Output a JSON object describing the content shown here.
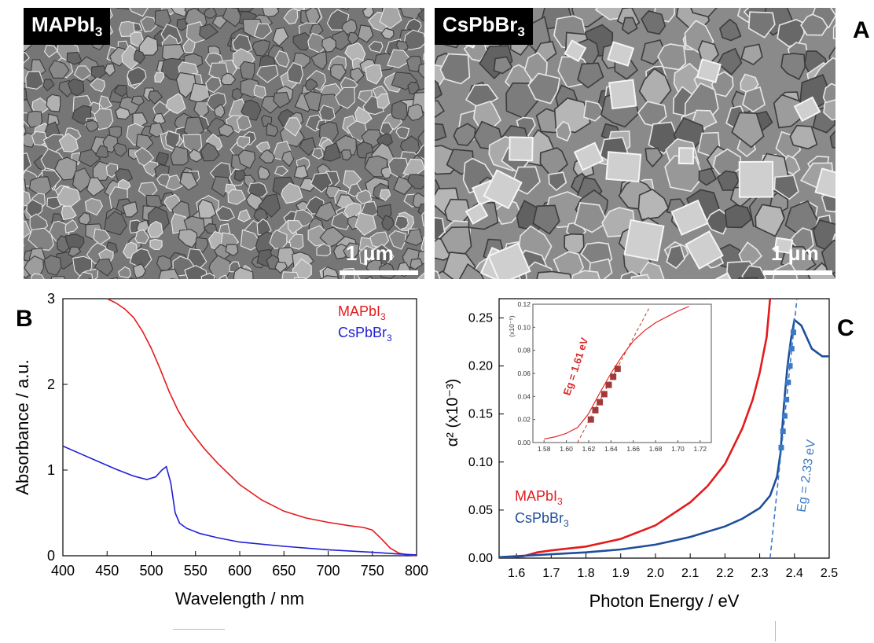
{
  "panel_a": {
    "letter": "A",
    "left": {
      "label_main": "MAPbI",
      "label_sub": "3",
      "scale_label": "1 μm"
    },
    "right": {
      "label_main": "CsPbBr",
      "label_sub": "3",
      "scale_label": "1 μm"
    }
  },
  "panel_b": {
    "letter": "B",
    "legend": [
      {
        "main": "MAPbI",
        "sub": "3",
        "color": "#e41a1c"
      },
      {
        "main": "CsPbBr",
        "sub": "3",
        "color": "#1f1fd6"
      }
    ]
  },
  "panel_c": {
    "letter": "C",
    "legend": [
      {
        "main": "MAPbI",
        "sub": "3",
        "color": "#e41a1c"
      },
      {
        "main": "CsPbBr",
        "sub": "3",
        "color": "#1f4e9a"
      }
    ],
    "eg_csbr": "Eg = 2.33 eV",
    "eg_mapi": "Eg = 1.61 eV",
    "inset_multiplier": "(x10⁻⁵)"
  },
  "chart_data": [
    {
      "type": "line",
      "title": "",
      "xlabel": "Wavelength / nm",
      "ylabel": "Absorbance / a.u.",
      "xlim": [
        400,
        800
      ],
      "ylim": [
        0,
        3
      ],
      "xticks": [
        400,
        450,
        500,
        550,
        600,
        650,
        700,
        750,
        800
      ],
      "yticks": [
        0,
        1,
        2,
        3
      ],
      "series": [
        {
          "name": "MAPbI3",
          "color": "#e41a1c",
          "x": [
            450,
            460,
            470,
            480,
            490,
            500,
            510,
            520,
            530,
            540,
            550,
            560,
            575,
            600,
            625,
            650,
            675,
            700,
            725,
            740,
            750,
            760,
            770,
            780,
            790,
            800
          ],
          "y": [
            3.0,
            2.95,
            2.88,
            2.78,
            2.62,
            2.42,
            2.18,
            1.92,
            1.7,
            1.52,
            1.38,
            1.25,
            1.08,
            0.83,
            0.65,
            0.52,
            0.44,
            0.39,
            0.35,
            0.33,
            0.3,
            0.2,
            0.09,
            0.03,
            0.01,
            0.0
          ]
        },
        {
          "name": "CsPbBr3",
          "color": "#1f1fd6",
          "x": [
            400,
            420,
            440,
            460,
            480,
            495,
            505,
            512,
            517,
            522,
            527,
            532,
            540,
            555,
            575,
            600,
            650,
            700,
            750,
            780,
            800
          ],
          "y": [
            1.28,
            1.19,
            1.1,
            1.01,
            0.93,
            0.89,
            0.92,
            1.0,
            1.04,
            0.85,
            0.5,
            0.38,
            0.32,
            0.26,
            0.21,
            0.16,
            0.11,
            0.07,
            0.04,
            0.02,
            0.01
          ]
        }
      ]
    },
    {
      "type": "line",
      "title": "",
      "xlabel": "Photon Energy / eV",
      "ylabel": "α² (x10⁻³)",
      "xlim": [
        1.55,
        2.5
      ],
      "ylim": [
        0,
        0.27
      ],
      "xticks": [
        1.6,
        1.7,
        1.8,
        1.9,
        2.0,
        2.1,
        2.2,
        2.3,
        2.4,
        2.5
      ],
      "yticks": [
        0.0,
        0.05,
        0.1,
        0.15,
        0.2,
        0.25
      ],
      "series": [
        {
          "name": "MAPbI3",
          "color": "#e41a1c",
          "x": [
            1.55,
            1.62,
            1.66,
            1.7,
            1.8,
            1.9,
            2.0,
            2.1,
            2.15,
            2.2,
            2.25,
            2.28,
            2.3,
            2.32,
            2.33
          ],
          "y": [
            0.0,
            0.002,
            0.006,
            0.008,
            0.012,
            0.02,
            0.034,
            0.058,
            0.075,
            0.098,
            0.135,
            0.165,
            0.193,
            0.23,
            0.27
          ]
        },
        {
          "name": "CsPbBr3",
          "color": "#1f4e9a",
          "x": [
            1.55,
            1.7,
            1.8,
            1.9,
            2.0,
            2.1,
            2.2,
            2.25,
            2.3,
            2.33,
            2.35,
            2.36,
            2.37,
            2.38,
            2.39,
            2.4,
            2.42,
            2.45,
            2.48,
            2.5
          ],
          "y": [
            0.001,
            0.004,
            0.006,
            0.009,
            0.014,
            0.022,
            0.033,
            0.041,
            0.052,
            0.065,
            0.085,
            0.11,
            0.16,
            0.2,
            0.228,
            0.248,
            0.242,
            0.218,
            0.21,
            0.21
          ]
        }
      ],
      "fit_line": {
        "name": "CsPbBr3 fit",
        "x": [
          2.33,
          2.41
        ],
        "y": [
          0.0,
          0.28
        ]
      },
      "fit_points": {
        "x": [
          2.362,
          2.367,
          2.372,
          2.377,
          2.382,
          2.387,
          2.392,
          2.397
        ],
        "y": [
          0.115,
          0.132,
          0.148,
          0.165,
          0.183,
          0.2,
          0.218,
          0.235
        ]
      },
      "annotations": [
        "Eg = 2.33 eV"
      ]
    },
    {
      "type": "line",
      "title": "inset",
      "xlim": [
        1.57,
        1.73
      ],
      "ylim": [
        0,
        0.12
      ],
      "xticks": [
        1.58,
        1.6,
        1.62,
        1.64,
        1.66,
        1.68,
        1.7,
        1.72
      ],
      "yticks": [
        0.0,
        0.02,
        0.04,
        0.06,
        0.08,
        0.1,
        0.12
      ],
      "series": [
        {
          "name": "MAPbI3",
          "color": "#e41a1c",
          "x": [
            1.58,
            1.59,
            1.6,
            1.61,
            1.62,
            1.63,
            1.64,
            1.65,
            1.66,
            1.67,
            1.68,
            1.69,
            1.7,
            1.71
          ],
          "y": [
            0.003,
            0.005,
            0.008,
            0.013,
            0.025,
            0.043,
            0.06,
            0.075,
            0.088,
            0.097,
            0.104,
            0.109,
            0.114,
            0.118
          ]
        }
      ],
      "fit_line": {
        "x": [
          1.61,
          1.675
        ],
        "y": [
          0.0,
          0.118
        ]
      },
      "fit_points": {
        "x": [
          1.622,
          1.626,
          1.63,
          1.634,
          1.638,
          1.642,
          1.646
        ],
        "y": [
          0.02,
          0.028,
          0.035,
          0.042,
          0.05,
          0.057,
          0.064
        ]
      },
      "annotations": [
        "Eg = 1.61 eV"
      ]
    }
  ]
}
